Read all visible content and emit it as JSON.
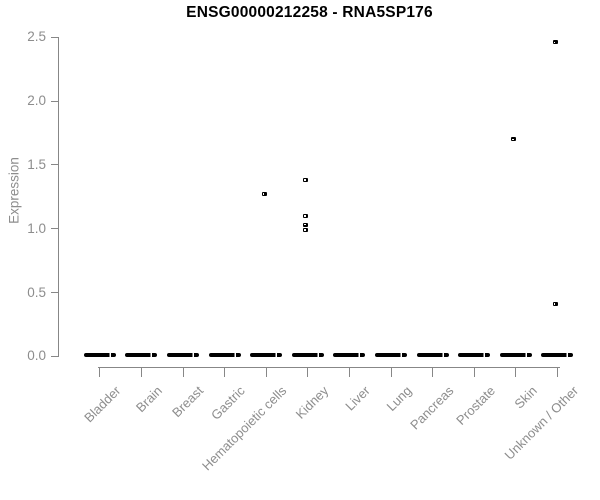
{
  "chart_data": {
    "type": "scatter",
    "subtype": "strip-plot",
    "title": "ENSG00000212258 - RNA5SP176",
    "xlabel": "",
    "ylabel": "Expression",
    "ylim": [
      0,
      2.5
    ],
    "ytick_labels": [
      "0.0",
      "0.5",
      "1.0",
      "1.5",
      "2.0",
      "2.5"
    ],
    "ytick_values": [
      0,
      0.5,
      1.0,
      1.5,
      2.0,
      2.5
    ],
    "categories": [
      "Bladder",
      "Brain",
      "Breast",
      "Gastric",
      "Hematopoietic cells",
      "Kidney",
      "Liver",
      "Lung",
      "Pancreas",
      "Prostate",
      "Skin",
      "Unknown / Other"
    ],
    "baseline_clusters": {
      "description": "dense overlapping samples at expression 0 rendered as a thick dash in every category",
      "value": 0,
      "present_in_all_categories": true
    },
    "outlier_points": [
      {
        "category": "Hematopoietic cells",
        "value": 1.27
      },
      {
        "category": "Kidney",
        "value": 1.38
      },
      {
        "category": "Kidney",
        "value": 1.1
      },
      {
        "category": "Kidney",
        "value": 1.03
      },
      {
        "category": "Kidney",
        "value": 0.99
      },
      {
        "category": "Skin",
        "value": 1.7
      },
      {
        "category": "Unknown / Other",
        "value": 2.46
      },
      {
        "category": "Unknown / Other",
        "value": 0.41
      }
    ],
    "grid": false,
    "legend": "none",
    "colors": {
      "point": "#000000",
      "axis": "#878787",
      "tick_text": "#8d8d8d",
      "title_text": "#000000",
      "background": "#ffffff"
    }
  }
}
